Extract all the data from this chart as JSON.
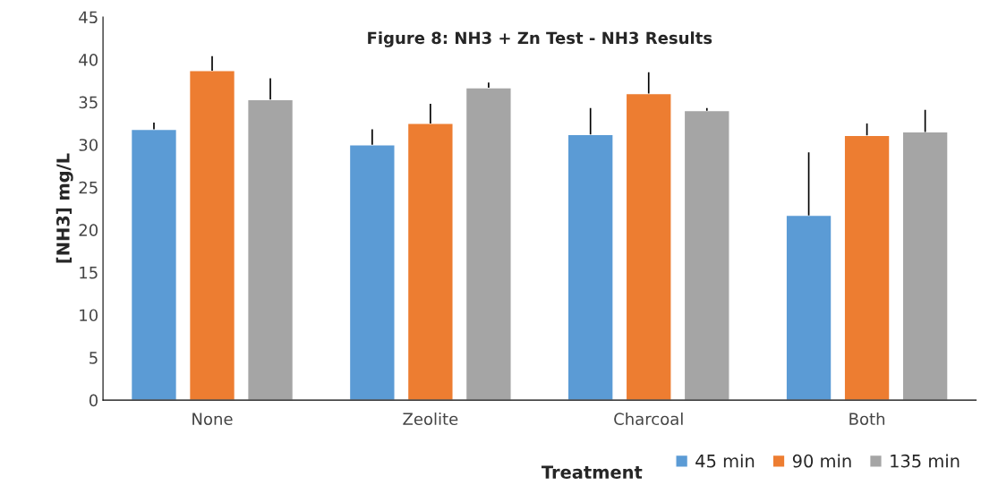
{
  "chart_data": {
    "type": "bar",
    "title": "Figure 8: NH3 + Zn Test - NH3 Results",
    "xlabel": "Treatment",
    "ylabel": "[NH3] mg/L",
    "categories": [
      "None",
      "Zeolite",
      "Charcoal",
      "Both"
    ],
    "series": [
      {
        "name": "45 min",
        "color": "#5b9bd5",
        "values": [
          31.8,
          30.0,
          31.2,
          21.7
        ],
        "errors": [
          [
            31.8,
            32.6
          ],
          [
            30.0,
            31.8
          ],
          [
            31.2,
            34.3
          ],
          [
            21.7,
            29.1
          ]
        ]
      },
      {
        "name": "90 min",
        "color": "#ed7d31",
        "values": [
          38.7,
          32.5,
          36.0,
          31.1
        ],
        "errors": [
          [
            38.7,
            40.4
          ],
          [
            32.5,
            34.8
          ],
          [
            36.0,
            38.5
          ],
          [
            31.1,
            32.5
          ]
        ]
      },
      {
        "name": "135 min",
        "color": "#a5a5a5",
        "values": [
          35.3,
          36.7,
          34.0,
          31.5
        ],
        "errors": [
          [
            35.3,
            37.8
          ],
          [
            36.7,
            37.3
          ],
          [
            34.0,
            34.3
          ],
          [
            31.5,
            34.1
          ]
        ]
      }
    ],
    "ylim": [
      0,
      45
    ],
    "yticks": [
      0,
      5,
      10,
      15,
      20,
      25,
      30,
      35,
      40,
      45
    ],
    "grid": false,
    "legend": "bottom right"
  }
}
